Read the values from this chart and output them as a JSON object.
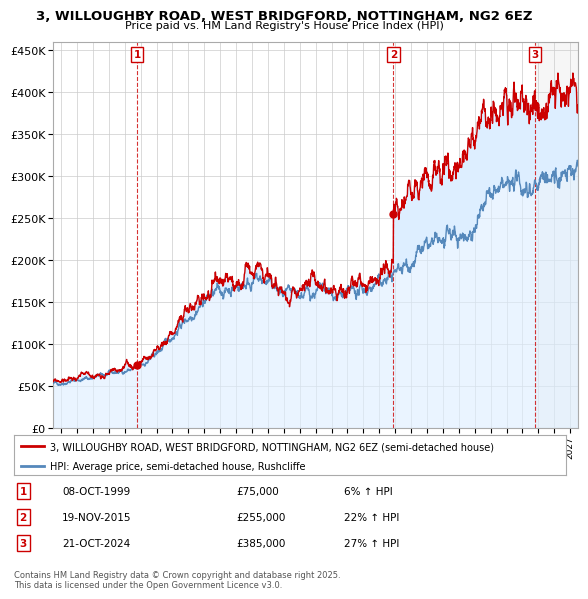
{
  "title": "3, WILLOUGHBY ROAD, WEST BRIDGFORD, NOTTINGHAM, NG2 6EZ",
  "subtitle": "Price paid vs. HM Land Registry's House Price Index (HPI)",
  "sale_dates": [
    1999.77,
    2015.89,
    2024.8
  ],
  "sale_prices": [
    75000,
    255000,
    385000
  ],
  "sale_labels": [
    "1",
    "2",
    "3"
  ],
  "sale_info": [
    {
      "label": "1",
      "date": "08-OCT-1999",
      "price": "£75,000",
      "hpi": "6% ↑ HPI"
    },
    {
      "label": "2",
      "date": "19-NOV-2015",
      "price": "£255,000",
      "hpi": "22% ↑ HPI"
    },
    {
      "label": "3",
      "date": "21-OCT-2024",
      "price": "£385,000",
      "hpi": "27% ↑ HPI"
    }
  ],
  "red_line_color": "#cc0000",
  "blue_line_color": "#5588bb",
  "fill_color": "#ddeeff",
  "dashed_line_color": "#cc0000",
  "background_color": "#ffffff",
  "grid_color": "#cccccc",
  "xmin": 1994.5,
  "xmax": 2027.5,
  "ymin": 0,
  "ymax": 460000,
  "yticks": [
    0,
    50000,
    100000,
    150000,
    200000,
    250000,
    300000,
    350000,
    400000,
    450000
  ],
  "legend_line1": "3, WILLOUGHBY ROAD, WEST BRIDGFORD, NOTTINGHAM, NG2 6EZ (semi-detached house)",
  "legend_line2": "HPI: Average price, semi-detached house, Rushcliffe",
  "footer": "Contains HM Land Registry data © Crown copyright and database right 2025.\nThis data is licensed under the Open Government Licence v3.0.",
  "hpi_years": [
    1994.5,
    1995,
    1995.5,
    1996,
    1996.5,
    1997,
    1997.5,
    1998,
    1998.5,
    1999,
    1999.5,
    2000,
    2000.5,
    2001,
    2001.5,
    2002,
    2002.5,
    2003,
    2003.5,
    2004,
    2004.5,
    2005,
    2005.5,
    2006,
    2006.5,
    2007,
    2007.5,
    2008,
    2008.5,
    2009,
    2009.5,
    2010,
    2010.5,
    2011,
    2011.5,
    2012,
    2012.5,
    2013,
    2013.5,
    2014,
    2014.5,
    2015,
    2015.5,
    2016,
    2016.5,
    2017,
    2017.5,
    2018,
    2018.5,
    2019,
    2019.5,
    2020,
    2020.5,
    2021,
    2021.5,
    2022,
    2022.5,
    2023,
    2023.5,
    2024,
    2024.5,
    2025,
    2025.5,
    2026,
    2026.5,
    2027,
    2027.5
  ],
  "hpi_base": [
    53000,
    54000,
    55500,
    57000,
    58500,
    60000,
    62000,
    64000,
    66000,
    68000,
    70000,
    74000,
    80000,
    88000,
    98000,
    110000,
    122000,
    132000,
    142000,
    152000,
    158000,
    162000,
    165000,
    168000,
    172000,
    175000,
    174000,
    172000,
    165000,
    155000,
    155000,
    158000,
    160000,
    162000,
    161000,
    158000,
    157000,
    157000,
    160000,
    164000,
    168000,
    172000,
    178000,
    185000,
    192000,
    200000,
    207000,
    212000,
    216000,
    220000,
    224000,
    228000,
    232000,
    242000,
    256000,
    272000,
    280000,
    285000,
    288000,
    290000,
    292000,
    294000,
    296000,
    298000,
    299000,
    300000,
    301000
  ]
}
